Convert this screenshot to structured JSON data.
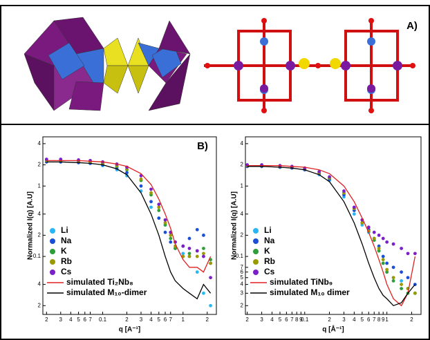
{
  "panel_label_a": "A)",
  "chart_data": [
    {
      "type": "line",
      "annotation": "B)",
      "x_label": "q [A⁻¹]",
      "y_label": "Normalized I(q) [A.U]",
      "log_x": true,
      "log_y": true,
      "xlim": [
        0.018,
        2.6
      ],
      "ylim": [
        0.015,
        5
      ],
      "xticks": [
        {
          "value": 0.02,
          "label": "2"
        },
        {
          "value": 0.03,
          "label": "3"
        },
        {
          "value": 0.04,
          "label": "4"
        },
        {
          "value": 0.05,
          "label": "5"
        },
        {
          "value": 0.06,
          "label": "6"
        },
        {
          "value": 0.07,
          "label": "7"
        },
        0.1,
        {
          "value": 0.2,
          "label": "2"
        },
        {
          "value": 0.3,
          "label": "3"
        },
        {
          "value": 0.4,
          "label": "4"
        },
        {
          "value": 0.5,
          "label": "5"
        },
        {
          "value": 0.6,
          "label": "6"
        },
        {
          "value": 0.7,
          "label": "7"
        },
        1,
        2
      ],
      "yticks": [
        4,
        2,
        1,
        {
          "value": 0.4,
          "label": "4"
        },
        {
          "value": 0.2,
          "label": "2"
        },
        0.1,
        {
          "value": 0.04,
          "label": "4"
        },
        {
          "value": 0.02,
          "label": "2"
        }
      ],
      "x": [
        0.02,
        0.03,
        0.05,
        0.07,
        0.1,
        0.15,
        0.2,
        0.3,
        0.4,
        0.5,
        0.6,
        0.7,
        0.8,
        1.0,
        1.2,
        1.5,
        1.8,
        2.2
      ],
      "series": [
        {
          "name": "Li",
          "color": "#29b6f6",
          "style": "points",
          "values": [
            2.2,
            2.2,
            2.15,
            2.1,
            1.95,
            1.7,
            1.4,
            0.85,
            0.5,
            0.35,
            0.28,
            0.22,
            0.16,
            0.11,
            0.1,
            0.06,
            0.03,
            0.02
          ]
        },
        {
          "name": "Na",
          "color": "#1a4fd6",
          "style": "points",
          "values": [
            2.2,
            2.2,
            2.15,
            2.1,
            2.0,
            1.8,
            1.55,
            1.0,
            0.6,
            0.35,
            0.22,
            0.16,
            0.13,
            0.14,
            0.18,
            0.24,
            0.2,
            0.08
          ]
        },
        {
          "name": "K",
          "color": "#2e9e3a",
          "style": "points",
          "values": [
            2.3,
            2.3,
            2.25,
            2.2,
            2.1,
            1.9,
            1.7,
            1.2,
            0.75,
            0.45,
            0.28,
            0.18,
            0.13,
            0.1,
            0.11,
            0.12,
            0.13,
            0.09
          ]
        },
        {
          "name": "Rb",
          "color": "#9a9a00",
          "style": "points",
          "values": [
            2.3,
            2.3,
            2.25,
            2.2,
            2.1,
            1.95,
            1.75,
            1.25,
            0.8,
            0.5,
            0.3,
            0.2,
            0.14,
            0.1,
            0.1,
            0.1,
            0.11,
            0.08
          ]
        },
        {
          "name": "Cs",
          "color": "#7b1fc8",
          "style": "points",
          "values": [
            2.4,
            2.4,
            2.35,
            2.3,
            2.2,
            2.05,
            1.85,
            1.4,
            0.9,
            0.55,
            0.33,
            0.22,
            0.16,
            0.14,
            0.13,
            0.12,
            0.1,
            0.05
          ]
        },
        {
          "name": "simulated Ti₂Nb₈",
          "color": "#e02020",
          "style": "line",
          "values": [
            2.3,
            2.3,
            2.3,
            2.25,
            2.2,
            2.05,
            1.9,
            1.5,
            1.05,
            0.65,
            0.4,
            0.25,
            0.15,
            0.09,
            0.07,
            0.07,
            0.06,
            0.1
          ]
        },
        {
          "name": "simulated M₁₀-dimer",
          "color": "#000000",
          "style": "line",
          "values": [
            2.2,
            2.2,
            2.15,
            2.1,
            2.0,
            1.75,
            1.45,
            0.8,
            0.4,
            0.2,
            0.1,
            0.06,
            0.045,
            0.035,
            0.03,
            0.025,
            0.04,
            0.03
          ]
        }
      ]
    },
    {
      "type": "line",
      "x_label": "q [Å⁻¹]",
      "y_label": "Normalized I(q) [A.U]",
      "log_x": true,
      "log_y": true,
      "xlim": [
        0.019,
        2.6
      ],
      "ylim": [
        0.015,
        5
      ],
      "xticks": [
        {
          "value": 0.02,
          "label": "2"
        },
        {
          "value": 0.03,
          "label": "3"
        },
        {
          "value": 0.04,
          "label": "4"
        },
        {
          "value": 0.05,
          "label": "5"
        },
        {
          "value": 0.06,
          "label": "6"
        },
        {
          "value": 0.07,
          "label": "7"
        },
        {
          "value": 0.08,
          "label": "8"
        },
        {
          "value": 0.09,
          "label": "9"
        },
        0.1,
        {
          "value": 0.2,
          "label": "2"
        },
        {
          "value": 0.3,
          "label": "3"
        },
        {
          "value": 0.4,
          "label": "4"
        },
        {
          "value": 0.5,
          "label": "5"
        },
        {
          "value": 0.6,
          "label": "6"
        },
        {
          "value": 0.7,
          "label": "7"
        },
        {
          "value": 0.8,
          "label": "8"
        },
        {
          "value": 0.9,
          "label": "9"
        },
        1,
        2
      ],
      "yticks": [
        4,
        2,
        1,
        {
          "value": 0.4,
          "label": "4"
        },
        {
          "value": 0.2,
          "label": "2"
        },
        0.1,
        {
          "value": 0.07,
          "label": "7"
        },
        {
          "value": 0.06,
          "label": "6"
        },
        {
          "value": 0.05,
          "label": "5"
        },
        {
          "value": 0.04,
          "label": "4"
        },
        {
          "value": 0.03,
          "label": "3"
        },
        {
          "value": 0.02,
          "label": "2"
        }
      ],
      "x": [
        0.02,
        0.03,
        0.05,
        0.07,
        0.1,
        0.15,
        0.2,
        0.3,
        0.4,
        0.5,
        0.6,
        0.7,
        0.8,
        0.9,
        1.0,
        1.2,
        1.5,
        1.8,
        2.2
      ],
      "series": [
        {
          "name": "Li",
          "color": "#29b6f6",
          "style": "points",
          "values": [
            1.9,
            1.9,
            1.85,
            1.8,
            1.7,
            1.45,
            1.2,
            0.7,
            0.4,
            0.28,
            0.22,
            0.17,
            0.12,
            0.08,
            0.06,
            0.05,
            0.045,
            0.035,
            0.03
          ]
        },
        {
          "name": "Na",
          "color": "#1a4fd6",
          "style": "points",
          "values": [
            1.9,
            1.9,
            1.85,
            1.8,
            1.7,
            1.5,
            1.25,
            0.75,
            0.45,
            0.3,
            0.24,
            0.18,
            0.14,
            0.1,
            0.08,
            0.07,
            0.06,
            0.05,
            0.04
          ]
        },
        {
          "name": "K",
          "color": "#2e9e3a",
          "style": "points",
          "values": [
            1.95,
            1.95,
            1.9,
            1.85,
            1.75,
            1.55,
            1.3,
            0.8,
            0.48,
            0.3,
            0.23,
            0.17,
            0.12,
            0.08,
            0.06,
            0.045,
            0.035,
            0.03,
            0.03
          ]
        },
        {
          "name": "Rb",
          "color": "#9a9a00",
          "style": "points",
          "values": [
            1.95,
            1.95,
            1.9,
            1.85,
            1.75,
            1.55,
            1.3,
            0.8,
            0.48,
            0.3,
            0.23,
            0.18,
            0.13,
            0.09,
            0.065,
            0.05,
            0.04,
            0.035,
            0.03
          ]
        },
        {
          "name": "Cs",
          "color": "#7b1fc8",
          "style": "points",
          "values": [
            2.0,
            2.0,
            1.95,
            1.9,
            1.8,
            1.6,
            1.35,
            0.85,
            0.5,
            0.33,
            0.26,
            0.22,
            0.2,
            0.18,
            0.16,
            0.15,
            0.13,
            0.11,
            0.11
          ]
        },
        {
          "name": "simulated TiNb₉",
          "color": "#e02020",
          "style": "line",
          "values": [
            1.95,
            1.95,
            1.95,
            1.9,
            1.85,
            1.7,
            1.5,
            1.0,
            0.6,
            0.35,
            0.22,
            0.14,
            0.09,
            0.06,
            0.04,
            0.025,
            0.02,
            0.03,
            0.1
          ]
        },
        {
          "name": "simulated M₁₀ dimer",
          "color": "#000000",
          "style": "line",
          "values": [
            1.9,
            1.9,
            1.85,
            1.8,
            1.7,
            1.45,
            1.15,
            0.6,
            0.3,
            0.15,
            0.08,
            0.05,
            0.035,
            0.028,
            0.025,
            0.02,
            0.022,
            0.03,
            0.04
          ]
        }
      ]
    }
  ]
}
